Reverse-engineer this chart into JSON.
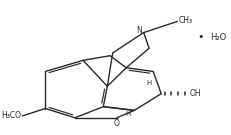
{
  "bg_color": "#ffffff",
  "line_color": "#2a2a2a",
  "lw": 1.0,
  "figsize": [
    2.32,
    1.35
  ],
  "dpi": 100,
  "xlim": [
    0,
    10
  ],
  "ylim": [
    0,
    5.8
  ],
  "h2o_dot": "•",
  "h2o": "H₂O",
  "N_label": "N",
  "CH3_label": "CH₃",
  "H3CO_label": "H₃CO",
  "OH_label": "OH",
  "O_label": "O",
  "H_label": "H"
}
